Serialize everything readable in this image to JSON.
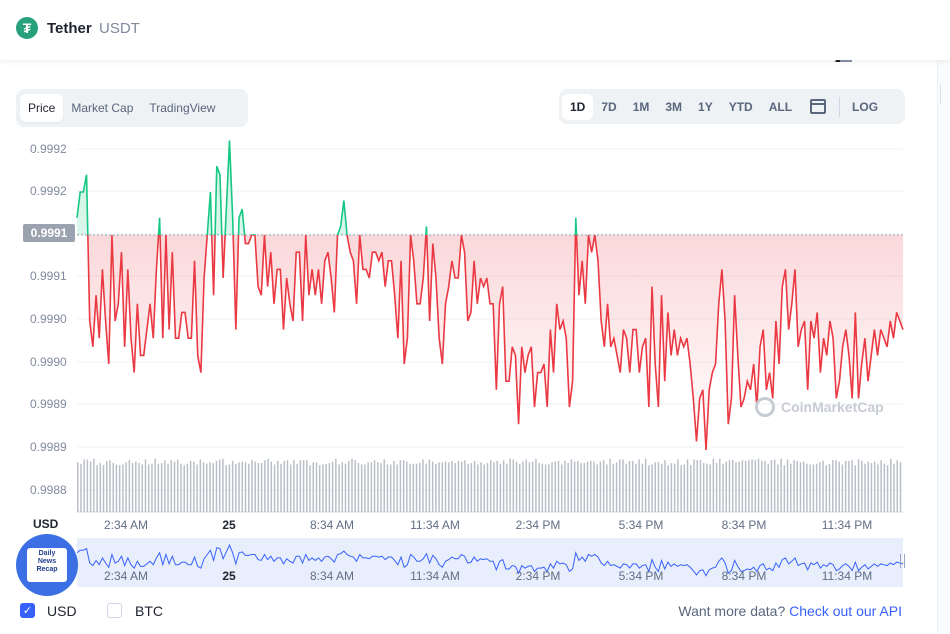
{
  "header": {
    "name": "Tether",
    "symbol": "USDT",
    "logo_glyph": "₮"
  },
  "tabs": {
    "type": [
      "Price",
      "Market Cap",
      "TradingView"
    ],
    "active_type": 0,
    "ranges": [
      "1D",
      "7D",
      "1M",
      "3M",
      "1Y",
      "YTD",
      "ALL"
    ],
    "active_range": 0,
    "log_label": "LOG"
  },
  "colors": {
    "up": "#16c784",
    "down": "#ea3943",
    "volume": "#b8bdc6",
    "navigator_line": "#3861fb",
    "navigator_bg": "#e8eefc"
  },
  "watermark": "CoinMarketCap",
  "badge": {
    "lines": [
      "Daily",
      "News",
      "Recap"
    ]
  },
  "chart_data": {
    "type": "line",
    "y_tick_labels": [
      "0.9992",
      "0.9992",
      "0.9991",
      "0.9990",
      "0.9990",
      "0.9989",
      "0.9989",
      "0.9988"
    ],
    "current_price_label": "0.9991",
    "reference_value": 0.9991,
    "ylim": [
      0.9988,
      0.9992
    ],
    "x_tick_labels": [
      "2:34 AM",
      "25",
      "8:34 AM",
      "11:34 AM",
      "2:34 PM",
      "5:34 PM",
      "8:34 PM",
      "11:34 PM"
    ],
    "y_axis_unit": "USD",
    "series": [
      {
        "values": [
          0.99912,
          0.99915,
          0.99915,
          0.99917,
          0.999,
          0.99897,
          0.99903,
          0.99898,
          0.99906,
          0.999,
          0.99895,
          0.9991,
          0.999,
          0.99902,
          0.99908,
          0.99897,
          0.99906,
          0.99898,
          0.99894,
          0.99902,
          0.99896,
          0.99896,
          0.99899,
          0.99902,
          0.99898,
          0.99906,
          0.99912,
          0.99898,
          0.9991,
          0.99899,
          0.99908,
          0.99898,
          0.99898,
          0.99901,
          0.99901,
          0.99898,
          0.99898,
          0.99907,
          0.99896,
          0.99894,
          0.99905,
          0.9991,
          0.99915,
          0.99903,
          0.99918,
          0.99917,
          0.99905,
          0.99913,
          0.99921,
          0.99912,
          0.99899,
          0.99912,
          0.99913,
          0.99909,
          0.99909,
          0.9991,
          0.9991,
          0.99904,
          0.99903,
          0.9991,
          0.99904,
          0.99908,
          0.99902,
          0.99906,
          0.99906,
          0.99899,
          0.99905,
          0.99902,
          0.999,
          0.99908,
          0.99908,
          0.999,
          0.9991,
          0.99903,
          0.99906,
          0.99903,
          0.99906,
          0.99902,
          0.99907,
          0.99908,
          0.99905,
          0.99901,
          0.9991,
          0.99911,
          0.99914,
          0.9991,
          0.99908,
          0.99907,
          0.99902,
          0.9991,
          0.99906,
          0.99906,
          0.99905,
          0.99908,
          0.99908,
          0.99907,
          0.99908,
          0.99904,
          0.99907,
          0.99907,
          0.99903,
          0.99898,
          0.99907,
          0.99895,
          0.99898,
          0.9991,
          0.99907,
          0.99902,
          0.99902,
          0.99905,
          0.99911,
          0.999,
          0.99909,
          0.99905,
          0.99898,
          0.99895,
          0.99902,
          0.99904,
          0.99907,
          0.99905,
          0.99905,
          0.9991,
          0.99908,
          0.999,
          0.99901,
          0.99907,
          0.99902,
          0.99905,
          0.99904,
          0.99905,
          0.99902,
          0.99902,
          0.99892,
          0.99902,
          0.99904,
          0.99893,
          0.99893,
          0.99897,
          0.99896,
          0.99888,
          0.99897,
          0.99894,
          0.99896,
          0.99897,
          0.9989,
          0.99894,
          0.99894,
          0.99895,
          0.9989,
          0.99899,
          0.99894,
          0.99902,
          0.99899,
          0.999,
          0.99898,
          0.9989,
          0.99893,
          0.99912,
          0.99903,
          0.99907,
          0.99902,
          0.9991,
          0.99908,
          0.9991,
          0.99907,
          0.999,
          0.99897,
          0.99902,
          0.99897,
          0.99898,
          0.99896,
          0.99894,
          0.99899,
          0.99898,
          0.99894,
          0.99899,
          0.99899,
          0.99894,
          0.99897,
          0.99898,
          0.9989,
          0.99904,
          0.99895,
          0.9989,
          0.99903,
          0.99893,
          0.99901,
          0.99896,
          0.99899,
          0.99896,
          0.99898,
          0.99897,
          0.99898,
          0.99895,
          0.99891,
          0.99886,
          0.99891,
          0.99892,
          0.99885,
          0.99892,
          0.99894,
          0.99895,
          0.99902,
          0.99906,
          0.999,
          0.99888,
          0.99891,
          0.99903,
          0.99896,
          0.9989,
          0.99891,
          0.99893,
          0.99892,
          0.99895,
          0.9989,
          0.99897,
          0.99899,
          0.99892,
          0.99894,
          0.99891,
          0.999,
          0.99895,
          0.99904,
          0.99906,
          0.99899,
          0.99902,
          0.99906,
          0.99897,
          0.99899,
          0.999,
          0.99892,
          0.999,
          0.99898,
          0.99901,
          0.99894,
          0.99898,
          0.99896,
          0.999,
          0.99898,
          0.99891,
          0.99893,
          0.99897,
          0.99899,
          0.99896,
          0.99891,
          0.99901,
          0.99891,
          0.99895,
          0.99898,
          0.99893,
          0.99896,
          0.99899,
          0.99896,
          0.99899,
          0.99898,
          0.99897,
          0.999,
          0.99898,
          0.99901,
          0.999,
          0.99899
        ]
      }
    ],
    "volume_values": [
      0.69,
      0.67,
      0.73,
      0.73,
      0.7,
      0.74,
      0.65,
      0.68,
      0.65,
      0.71,
      0.72,
      0.68,
      0.66,
      0.65,
      0.66,
      0.69,
      0.72,
      0.68,
      0.7,
      0.68,
      0.66,
      0.73,
      0.66,
      0.67,
      0.74,
      0.67,
      0.68,
      0.72,
      0.67,
      0.72,
      0.7,
      0.73,
      0.67,
      0.65,
      0.67,
      0.71,
      0.7,
      0.66,
      0.73,
      0.69,
      0.67,
      0.69,
      0.68,
      0.71,
      0.73,
      0.74,
      0.65,
      0.66,
      0.71,
      0.67,
      0.69,
      0.7,
      0.69,
      0.67,
      0.72,
      0.7,
      0.68,
      0.68,
      0.72,
      0.74,
      0.7,
      0.66,
      0.71,
      0.67,
      0.71,
      0.72,
      0.66,
      0.72,
      0.67,
      0.72,
      0.72,
      0.72,
      0.65,
      0.69,
      0.69,
      0.65,
      0.66,
      0.67,
      0.68,
      0.7,
      0.74,
      0.66,
      0.69,
      0.67,
      0.71,
      0.74,
      0.72,
      0.68,
      0.66,
      0.66,
      0.69,
      0.69,
      0.72,
      0.69,
      0.68,
      0.73,
      0.66,
      0.66,
      0.71,
      0.66,
      0.72,
      0.72,
      0.7,
      0.67,
      0.67,
      0.67,
      0.68,
      0.73,
      0.67,
      0.73,
      0.7,
      0.67,
      0.69,
      0.69,
      0.7,
      0.69,
      0.71,
      0.68,
      0.71,
      0.7,
      0.72,
      0.67,
      0.68,
      0.71,
      0.66,
      0.69,
      0.66,
      0.68,
      0.72,
      0.69,
      0.71,
      0.67,
      0.72,
      0.67,
      0.74,
      0.73,
      0.7,
      0.67,
      0.7,
      0.73,
      0.69,
      0.7,
      0.74,
      0.68,
      0.67,
      0.66,
      0.66,
      0.69,
      0.7,
      0.71,
      0.66,
      0.71,
      0.68,
      0.73,
      0.7,
      0.71,
      0.68,
      0.68,
      0.7,
      0.71,
      0.7,
      0.66,
      0.7,
      0.72,
      0.66,
      0.74,
      0.67,
      0.69,
      0.73,
      0.73,
      0.67,
      0.71,
      0.71,
      0.67,
      0.73,
      0.67,
      0.74,
      0.65,
      0.66,
      0.69,
      0.69,
      0.67,
      0.72,
      0.65,
      0.68,
      0.67,
      0.73,
      0.65,
      0.66,
      0.73,
      0.65,
      0.73,
      0.72,
      0.72,
      0.68,
      0.67,
      0.66,
      0.74,
      0.68,
      0.74,
      0.67,
      0.7,
      0.72,
      0.72,
      0.69,
      0.7,
      0.72,
      0.71,
      0.72,
      0.73,
      0.72,
      0.74,
      0.71,
      0.71,
      0.67,
      0.72,
      0.73,
      0.66,
      0.74,
      0.65,
      0.73,
      0.67,
      0.72,
      0.71,
      0.69,
      0.7,
      0.67,
      0.66,
      0.66,
      0.67,
      0.69,
      0.71,
      0.65,
      0.67,
      0.72,
      0.72,
      0.7,
      0.66,
      0.71,
      0.71,
      0.72,
      0.65,
      0.73,
      0.71,
      0.67,
      0.7,
      0.68,
      0.7,
      0.66,
      0.72,
      0.67,
      0.65,
      0.74,
      0.67,
      0.72,
      0.69
    ],
    "grid": true,
    "legend": "none"
  },
  "footer": {
    "currencies": [
      {
        "label": "USD",
        "checked": true
      },
      {
        "label": "BTC",
        "checked": false
      }
    ],
    "api_text": "Want more data?",
    "api_link": "Check out our API"
  }
}
